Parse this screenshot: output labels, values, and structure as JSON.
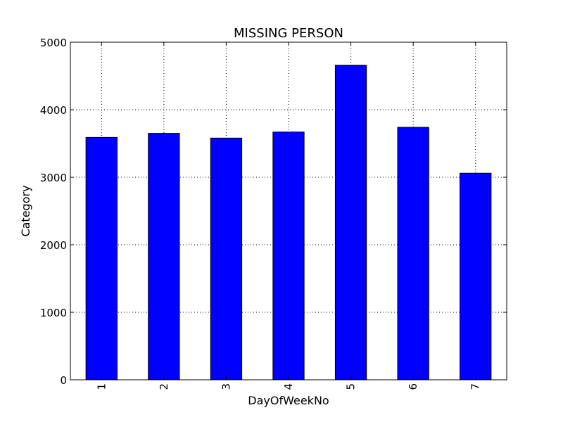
{
  "chart_data": {
    "type": "bar",
    "title": "MISSING PERSON",
    "xlabel": "DayOfWeekNo",
    "ylabel": "Category",
    "categories": [
      "1",
      "2",
      "3",
      "4",
      "5",
      "6",
      "7"
    ],
    "values": [
      3590,
      3650,
      3580,
      3670,
      4660,
      3740,
      3060
    ],
    "ylim": [
      0,
      5000
    ],
    "yticks": [
      "0",
      "1000",
      "2000",
      "3000",
      "4000",
      "5000"
    ],
    "grid": true,
    "bar_color": "#0000ff",
    "x_tick_rotation": "vertical"
  }
}
